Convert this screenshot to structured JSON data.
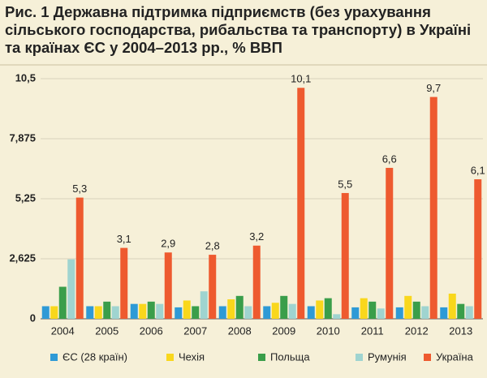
{
  "chart_data": {
    "type": "bar",
    "title": "Рис. 1 Державна підтримка підприємств (без урахування сільського господарства, рибальства та транспорту) в Україні та країнах ЄС у 2004–2013 рр., % ВВП",
    "categories": [
      "2004",
      "2005",
      "2006",
      "2007",
      "2008",
      "2009",
      "2010",
      "2011",
      "2012",
      "2013"
    ],
    "series": [
      {
        "name": "ЄС (28 країн)",
        "color": "#2e9ad6",
        "values": [
          0.55,
          0.55,
          0.65,
          0.5,
          0.55,
          0.55,
          0.55,
          0.5,
          0.5,
          0.5
        ]
      },
      {
        "name": "Чехія",
        "color": "#f9d71c",
        "values": [
          0.55,
          0.55,
          0.65,
          0.8,
          0.85,
          0.7,
          0.8,
          0.9,
          1.0,
          1.1
        ]
      },
      {
        "name": "Польща",
        "color": "#3a9e4a",
        "values": [
          1.4,
          0.75,
          0.75,
          0.55,
          1.0,
          1.0,
          0.9,
          0.75,
          0.75,
          0.65
        ]
      },
      {
        "name": "Румунія",
        "color": "#9fd4d0",
        "values": [
          2.6,
          0.55,
          0.65,
          1.2,
          0.55,
          0.65,
          0.2,
          0.45,
          0.55,
          0.55
        ]
      },
      {
        "name": "Україна",
        "color": "#ee5a2f",
        "values": [
          5.3,
          3.1,
          2.9,
          2.8,
          3.2,
          10.1,
          5.5,
          6.6,
          9.7,
          6.1
        ],
        "value_labels": [
          "5,3",
          "3,1",
          "2,9",
          "2,8",
          "3,2",
          "10,1",
          "5,5",
          "6,6",
          "9,7",
          "6,1"
        ]
      }
    ],
    "ylim": [
      0,
      10.5
    ],
    "yticks": [
      0,
      {
        "value": 2.625,
        "label": "2,625"
      },
      {
        "value": 5.25,
        "label": "5,25"
      },
      {
        "value": 7.875,
        "label": "7,875"
      },
      {
        "value": 10.5,
        "label": "10,5"
      }
    ],
    "grid": true
  }
}
